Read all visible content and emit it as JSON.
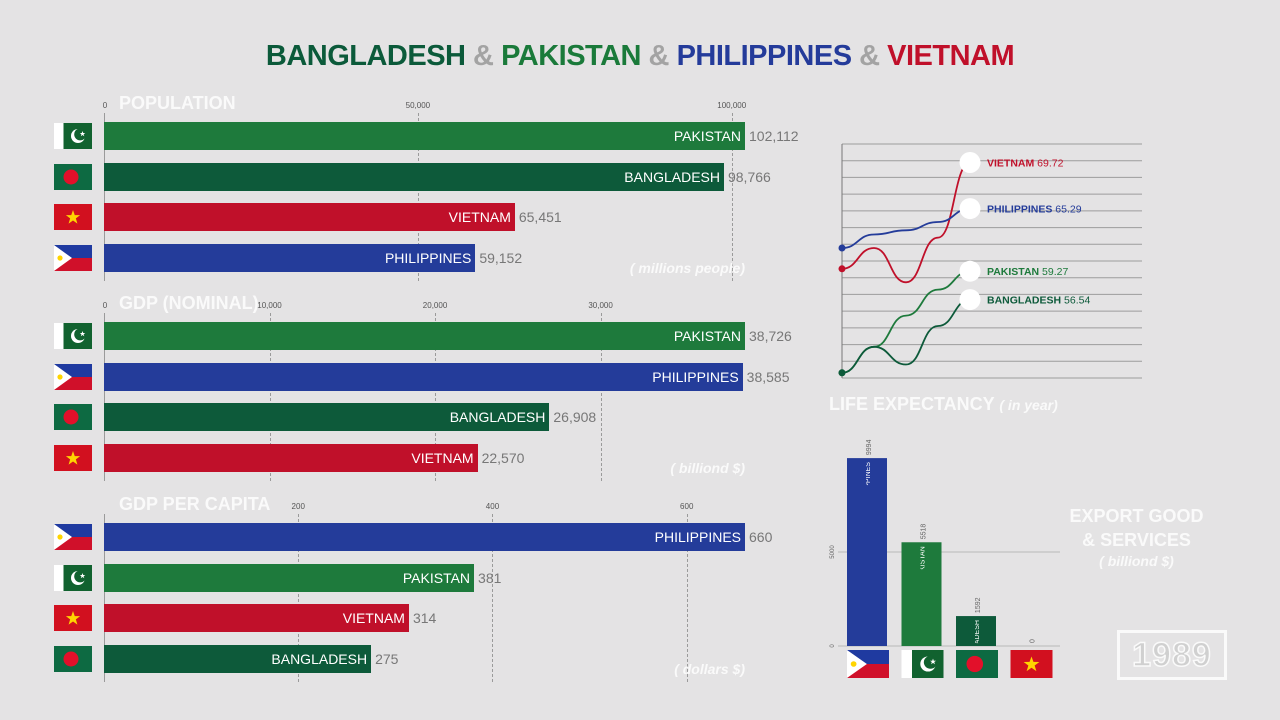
{
  "title": {
    "parts": [
      {
        "text": "BANGLADESH",
        "color": "#0b5a3a"
      },
      {
        "text": " & ",
        "color": "#a3a3a3"
      },
      {
        "text": "PAKISTAN",
        "color": "#1a7a3a"
      },
      {
        "text": " & ",
        "color": "#a3a3a3"
      },
      {
        "text": "PHILIPPINES",
        "color": "#243b9a"
      },
      {
        "text": " & ",
        "color": "#a3a3a3"
      },
      {
        "text": "VIETNAM",
        "color": "#c0102a"
      }
    ]
  },
  "colors": {
    "PAKISTAN": "#1e7a3c",
    "BANGLADESH": "#0d5a3a",
    "VIETNAM": "#c0102a",
    "PHILIPPINES": "#243c9a"
  },
  "year": "1989",
  "chart_data": [
    {
      "id": "population",
      "type": "bar",
      "orientation": "horizontal",
      "title": "POPULATION",
      "unit": "( millions people)",
      "xlim": [
        0,
        102112
      ],
      "ticks": [
        {
          "value": 0,
          "label": "0"
        },
        {
          "value": 50000,
          "label": "50,000"
        },
        {
          "value": 100000,
          "label": "100,000"
        }
      ],
      "bars": [
        {
          "country": "PAKISTAN",
          "value": 102112,
          "label": "102,112"
        },
        {
          "country": "BANGLADESH",
          "value": 98766,
          "label": "98,766"
        },
        {
          "country": "VIETNAM",
          "value": 65451,
          "label": "65,451"
        },
        {
          "country": "PHILIPPINES",
          "value": 59152,
          "label": "59,152"
        }
      ]
    },
    {
      "id": "gdp",
      "type": "bar",
      "orientation": "horizontal",
      "title": "GDP (NOMINAL)",
      "unit": "( billiond $)",
      "xlim": [
        0,
        38726
      ],
      "ticks": [
        {
          "value": 0,
          "label": "0"
        },
        {
          "value": 10000,
          "label": "10,000"
        },
        {
          "value": 20000,
          "label": "20,000"
        },
        {
          "value": 30000,
          "label": "30,000"
        }
      ],
      "bars": [
        {
          "country": "PAKISTAN",
          "value": 38726,
          "label": "38,726"
        },
        {
          "country": "PHILIPPINES",
          "value": 38585,
          "label": "38,585"
        },
        {
          "country": "BANGLADESH",
          "value": 26908,
          "label": "26,908"
        },
        {
          "country": "VIETNAM",
          "value": 22570,
          "label": "22,570"
        }
      ]
    },
    {
      "id": "gdp_per_capita",
      "type": "bar",
      "orientation": "horizontal",
      "title": "GDP PER CAPITA",
      "unit": "( dollars $)",
      "xlim": [
        0,
        660
      ],
      "ticks": [
        {
          "value": 200,
          "label": "200"
        },
        {
          "value": 400,
          "label": "400"
        },
        {
          "value": 600,
          "label": "600"
        }
      ],
      "bars": [
        {
          "country": "PHILIPPINES",
          "value": 660,
          "label": "660"
        },
        {
          "country": "PAKISTAN",
          "value": 381,
          "label": "381"
        },
        {
          "country": "VIETNAM",
          "value": 314,
          "label": "314"
        },
        {
          "country": "BANGLADESH",
          "value": 275,
          "label": "275"
        }
      ]
    },
    {
      "id": "life_expectancy",
      "type": "line",
      "title": "LIFE EXPECTANCY",
      "unit": "( in year)",
      "grid": true,
      "series": [
        {
          "name": "VIETNAM",
          "final": 69.72,
          "final_label": "69.72",
          "start": 59.5,
          "y": [
            59.5,
            61.5,
            58.2,
            62.5,
            69.72
          ]
        },
        {
          "name": "PHILIPPINES",
          "final": 65.29,
          "final_label": "65.29",
          "start": 61.5,
          "y": [
            61.5,
            62.8,
            63.2,
            64.0,
            65.29
          ]
        },
        {
          "name": "PAKISTAN",
          "final": 59.27,
          "final_label": "59.27",
          "start": 49.5,
          "y": [
            49.5,
            52.0,
            55.0,
            57.5,
            59.27
          ]
        },
        {
          "name": "BANGLADESH",
          "final": 56.54,
          "final_label": "56.54",
          "start": 49.5,
          "y": [
            49.5,
            52.0,
            50.3,
            54.0,
            56.54
          ]
        }
      ],
      "ylim": [
        49.0,
        71.5
      ]
    },
    {
      "id": "exports",
      "type": "bar",
      "orientation": "vertical",
      "title": "EXPORT GOOD & SERVICES",
      "title_lines": [
        "EXPORT GOOD",
        "& SERVICES"
      ],
      "unit": "( billiond $)",
      "ylim": [
        0,
        10000
      ],
      "ticks": [
        {
          "value": 0,
          "label": "0"
        },
        {
          "value": 5000,
          "label": "5000"
        }
      ],
      "bars": [
        {
          "country": "PHILIPPINES",
          "value": 9994,
          "label": "9994"
        },
        {
          "country": "PAKISTAN",
          "value": 5518,
          "label": "5518"
        },
        {
          "country": "BANGLADESH",
          "value": 1592,
          "label": "1592"
        },
        {
          "country": "VIETNAM",
          "value": 0,
          "label": "0"
        }
      ]
    }
  ]
}
